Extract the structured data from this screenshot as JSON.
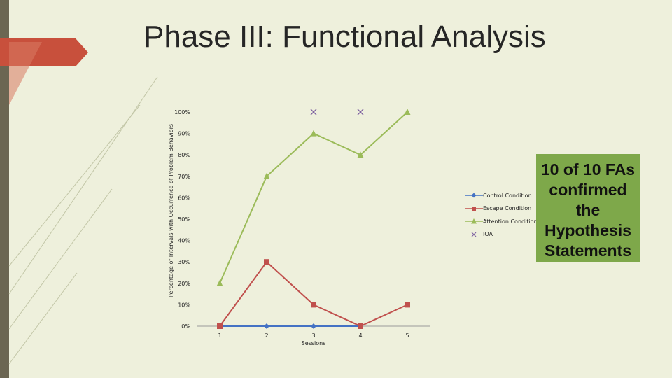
{
  "slide": {
    "title": "Phase III: Functional Analysis",
    "callout": "10 of 10 FAs confirmed the Hypothesis Statements"
  },
  "colors": {
    "background": "#eef0dc",
    "left_bar": "#6b6652",
    "accent_arrow": "#c8503c",
    "callout_fill": "#7ea84a"
  },
  "chart_data": {
    "type": "line",
    "xlabel": "Sessions",
    "ylabel": "Percentage of Intervals with Occurrence of Problem Behaviors",
    "x": [
      1,
      2,
      3,
      4,
      5
    ],
    "x_tick_labels": [
      "1",
      "2",
      "3",
      "4",
      "5"
    ],
    "ylim": [
      0,
      100
    ],
    "y_tick_labels": [
      "0%",
      "10%",
      "20%",
      "30%",
      "40%",
      "50%",
      "60%",
      "70%",
      "80%",
      "90%",
      "100%"
    ],
    "grid": false,
    "legend_position": "right",
    "series": [
      {
        "name": "Control Condition",
        "color": "#4472c4",
        "marker": "diamond",
        "line": true,
        "points": [
          [
            1,
            0
          ],
          [
            2,
            0
          ],
          [
            3,
            0
          ],
          [
            4,
            0
          ]
        ]
      },
      {
        "name": "Escape Condition",
        "color": "#c0504d",
        "marker": "square",
        "line": true,
        "points": [
          [
            1,
            0
          ],
          [
            2,
            30
          ],
          [
            3,
            10
          ],
          [
            4,
            0
          ],
          [
            5,
            10
          ]
        ]
      },
      {
        "name": "Attention Condition",
        "color": "#9bbb59",
        "marker": "triangle",
        "line": true,
        "points": [
          [
            1,
            20
          ],
          [
            2,
            70
          ],
          [
            3,
            90
          ],
          [
            4,
            80
          ],
          [
            5,
            100
          ]
        ]
      },
      {
        "name": "IOA",
        "color": "#8064a2",
        "marker": "x",
        "line": false,
        "points": [
          [
            3,
            100
          ],
          [
            4,
            100
          ]
        ]
      }
    ]
  }
}
